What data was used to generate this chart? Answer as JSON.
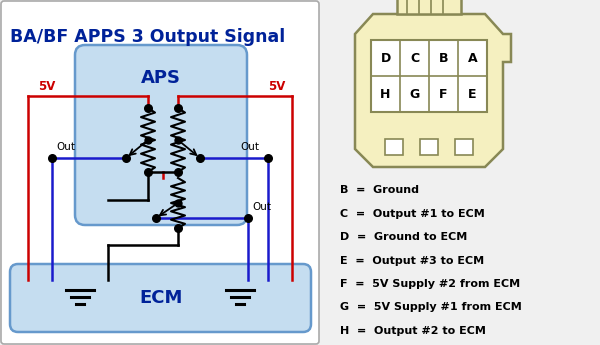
{
  "title": "BA/BF APPS 3 Output Signal",
  "bg_color": "#f0f0f0",
  "white": "#ffffff",
  "aps_fill": "#c5ddf0",
  "ecm_fill": "#c5ddf0",
  "red": "#cc0000",
  "blue": "#1a1acc",
  "black": "#000000",
  "dark_blue_text": "#002299",
  "conn_bg": "#f5f0c0",
  "conn_border": "#888855",
  "legend": [
    [
      "B",
      "Ground"
    ],
    [
      "C",
      "Output #1 to ECM"
    ],
    [
      "D",
      "Ground to ECM"
    ],
    [
      "E",
      "Output #3 to ECM"
    ],
    [
      "F",
      "5V Supply #2 from ECM"
    ],
    [
      "G",
      "5V Supply #1 from ECM"
    ],
    [
      "H",
      "Output #2 to ECM"
    ]
  ],
  "conn_top": [
    "D",
    "C",
    "B",
    "A"
  ],
  "conn_bot": [
    "H",
    "G",
    "F",
    "E"
  ]
}
